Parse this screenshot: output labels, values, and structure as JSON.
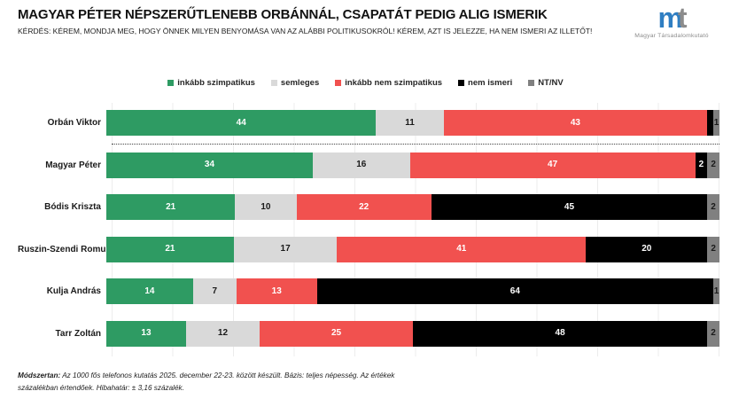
{
  "header": {
    "title": "MAGYAR PÉTER NÉPSZERŰTLENEBB ORBÁNNÁL, CSAPATÁT PEDIG ALIG ISMERIK",
    "subtitle": "KÉRDÉS: KÉREM, MONDJA MEG, HOGY ÖNNEK MILYEN BENYOMÁSA VAN AZ ALÁBBI POLITIKUSOKRÓL! KÉREM, AZT IS JELEZZE, HA NEM ISMERI AZ ILLETŐT!"
  },
  "logo": {
    "mark_m": "m",
    "mark_t": "t",
    "caption": "Magyar Társadalomkutató",
    "m_color": "#2F7EC2",
    "t_color": "#8C8C8C"
  },
  "chart_data": {
    "type": "bar",
    "orientation": "horizontal",
    "stacked": true,
    "unit": "%",
    "xlim": [
      0,
      100
    ],
    "gridlines": "vertical every 10%",
    "legend_position": "top-center",
    "separator_after_row_index": 0,
    "categories": [
      "Orbán Viktor",
      "Magyar Péter",
      "Bódis Kriszta",
      "Ruszin-Szendi Romulusz",
      "Kulja András",
      "Tarr Zoltán"
    ],
    "series": [
      {
        "name": "inkább szimpatikus",
        "color": "#2E9B63",
        "label_color": "#FFFFFF",
        "values": [
          44,
          34,
          21,
          21,
          14,
          13
        ]
      },
      {
        "name": "semleges",
        "color": "#D9D9D9",
        "label_color": "#1A1A1A",
        "values": [
          11,
          16,
          10,
          17,
          7,
          12
        ]
      },
      {
        "name": "inkább nem szimpatikus",
        "color": "#F1514F",
        "label_color": "#FFFFFF",
        "values": [
          43,
          47,
          22,
          41,
          13,
          25
        ]
      },
      {
        "name": "nem ismeri",
        "color": "#000000",
        "label_color": "#FFFFFF",
        "values": [
          1,
          2,
          45,
          20,
          64,
          48
        ]
      },
      {
        "name": "NT/NV",
        "color": "#808080",
        "label_color": "#1A1A1A",
        "values": [
          1,
          2,
          2,
          2,
          1,
          2
        ]
      }
    ],
    "hidden_value_labels": [
      {
        "row": 0,
        "series": 3
      }
    ]
  },
  "footer": {
    "label": "Módszertan:",
    "text": "Az 1000 fős telefonos kutatás 2025. december 22-23. között készült. Bázis: teljes népesség. Az értékek százalékban értendőek. Hibahatár: ± 3,16 százalék."
  }
}
